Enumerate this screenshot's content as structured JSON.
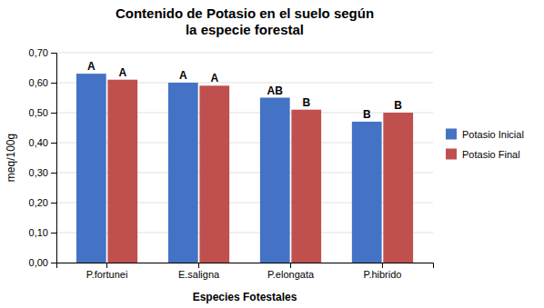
{
  "chart_data": {
    "type": "bar",
    "title": "Contenido de Potasio en el suelo según\nla especie forestal",
    "xlabel": "Especies Fotestales",
    "ylabel": "meq/100g",
    "categories": [
      "P.fortunei",
      "E.saligna",
      "P.elongata",
      "P.hibrido"
    ],
    "series": [
      {
        "name": "Potasio Inicial",
        "color": "#4472C4",
        "values": [
          0.63,
          0.6,
          0.55,
          0.47
        ],
        "annotations": [
          "A",
          "A",
          "AB",
          "B"
        ]
      },
      {
        "name": "Potasio Final",
        "color": "#C0504D",
        "values": [
          0.61,
          0.59,
          0.51,
          0.5
        ],
        "annotations": [
          "A",
          "A",
          "B",
          "B"
        ]
      }
    ],
    "ylim": [
      0,
      0.7
    ],
    "yticks": [
      {
        "value": 0.0,
        "label": "0,00"
      },
      {
        "value": 0.1,
        "label": "0,10"
      },
      {
        "value": 0.2,
        "label": "0,20"
      },
      {
        "value": 0.3,
        "label": "0,30"
      },
      {
        "value": 0.4,
        "label": "0,40"
      },
      {
        "value": 0.5,
        "label": "0,50"
      },
      {
        "value": 0.6,
        "label": "0,60"
      },
      {
        "value": 0.7,
        "label": "0,70"
      }
    ],
    "grid": true,
    "legend": "right"
  }
}
